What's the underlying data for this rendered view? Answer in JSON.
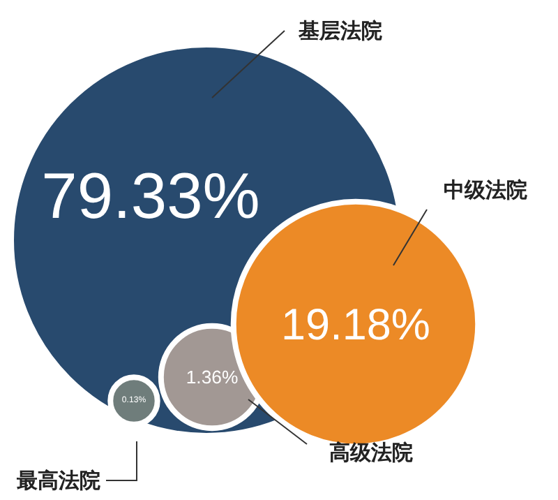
{
  "chart_data": {
    "type": "other",
    "categories": [
      "基层法院",
      "中级法院",
      "高级法院",
      "最高法院"
    ],
    "values": [
      79.33,
      19.18,
      1.36,
      0.13
    ],
    "value_labels": [
      "79.33%",
      "19.18%",
      "1.36%",
      "0.13%"
    ],
    "colors": [
      "#284a6e",
      "#ec8a26",
      "#a29894",
      "#6f7d7b"
    ]
  }
}
